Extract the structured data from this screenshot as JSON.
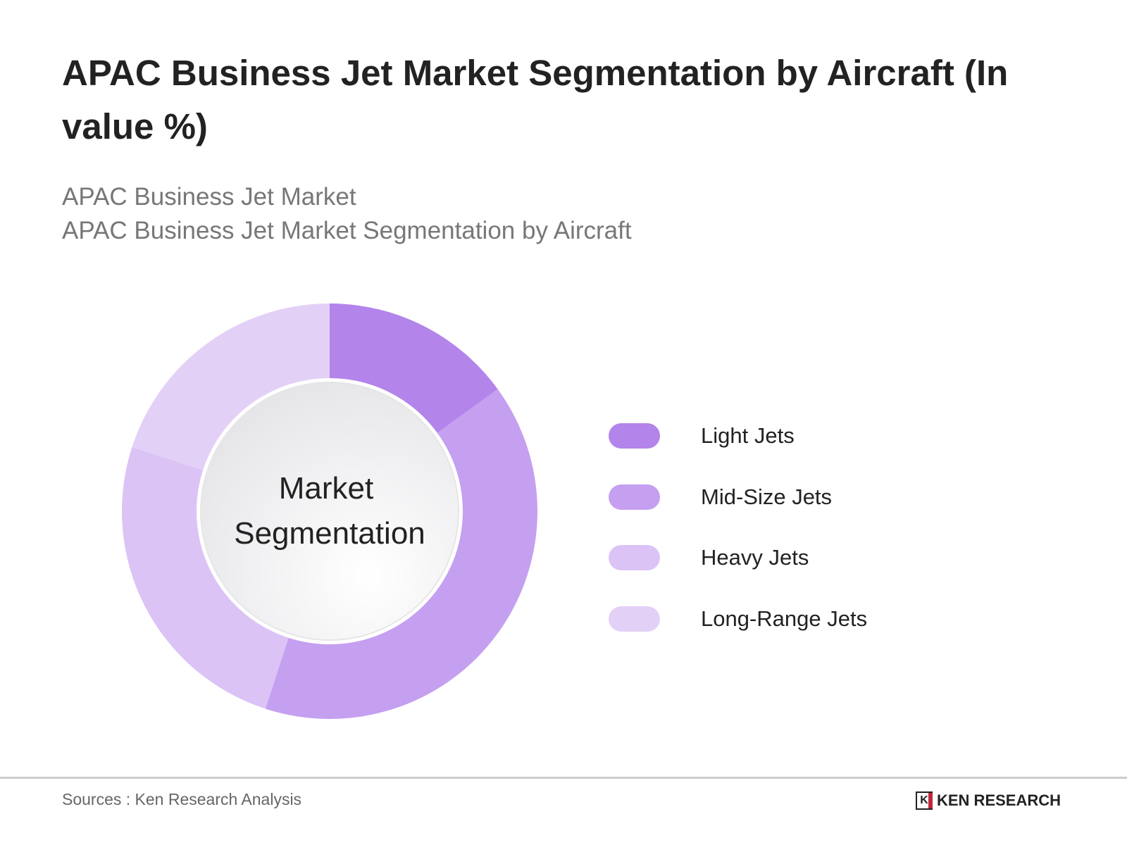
{
  "title": "APAC Business Jet Market Segmentation by Aircraft (In value %)",
  "subtitle_lines": [
    "APAC Business Jet Market",
    "APAC Business Jet Market Segmentation by Aircraft"
  ],
  "center_label_lines": [
    "Market",
    "Segmentation"
  ],
  "chart_data": {
    "type": "pie",
    "variant": "donut",
    "title": "APAC Business Jet Market Segmentation by Aircraft (In value %)",
    "categories": [
      "Light Jets",
      "Mid-Size Jets",
      "Heavy Jets",
      "Long-Range Jets"
    ],
    "values": [
      15,
      40,
      25,
      20
    ],
    "colors": [
      "#b384ea",
      "#c59ff0",
      "#dbc3f6",
      "#e3d0f7"
    ],
    "legend_position": "right"
  },
  "footer": {
    "source": "Sources : Ken Research Analysis",
    "logo_text": "KEN RESEARCH"
  }
}
